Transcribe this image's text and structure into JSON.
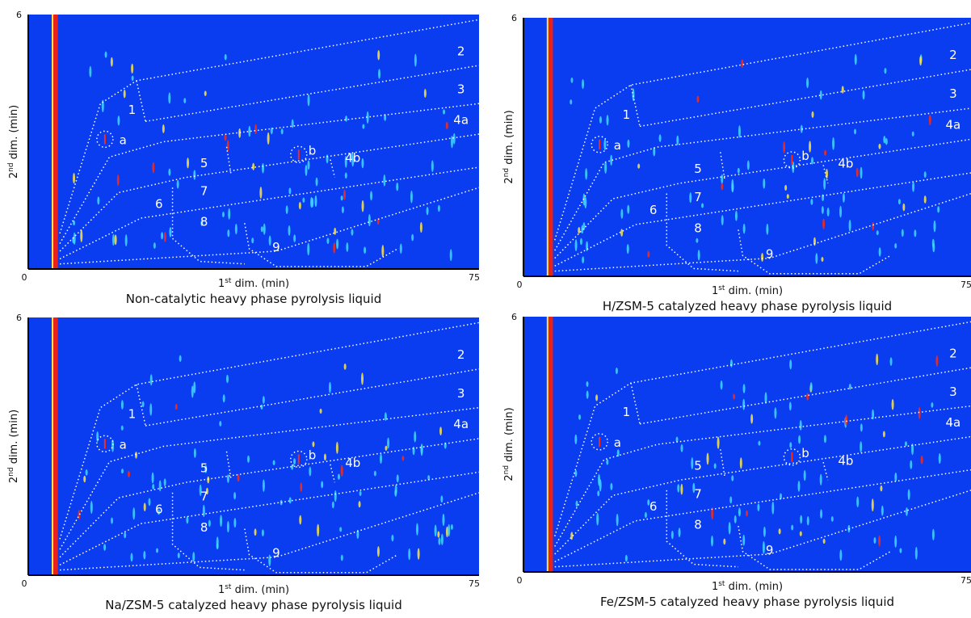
{
  "panels": [
    {
      "caption": "Non-catalytic heavy phase pyrolysis liquid",
      "x_label": {
        "pre": "1",
        "sup": "st",
        "post": " dim. (min)"
      },
      "y_label": {
        "pre": "2",
        "sup": "nd",
        "post": " dim. (min)"
      },
      "x_ticks": [
        "0",
        "75"
      ],
      "y_tick": "6",
      "regions": [
        "1",
        "2",
        "3",
        "4a",
        "4b",
        "5",
        "6",
        "7",
        "8",
        "9",
        "a",
        "b"
      ]
    },
    {
      "caption": "H/ZSM-5  catalyzed heavy phase pyrolysis liquid",
      "x_label": {
        "pre": "1",
        "sup": "st",
        "post": " dim. (min)"
      },
      "y_label": {
        "pre": "2",
        "sup": "nd",
        "post": " dim. (min)"
      },
      "x_ticks": [
        "0",
        "75"
      ],
      "y_tick": "6",
      "regions": [
        "1",
        "2",
        "3",
        "4a",
        "4b",
        "5",
        "6",
        "7",
        "8",
        "9",
        "a",
        "b"
      ]
    },
    {
      "caption": "Na/ZSM-5 catalyzed heavy phase pyrolysis liquid",
      "x_label": {
        "pre": "1",
        "sup": "st",
        "post": " dim. (min)"
      },
      "y_label": {
        "pre": "2",
        "sup": "nd",
        "post": " dim. (min)"
      },
      "x_ticks": [
        "0",
        "75"
      ],
      "y_tick": "6",
      "regions": [
        "1",
        "2",
        "3",
        "4a",
        "4b",
        "5",
        "6",
        "7",
        "8",
        "9",
        "a",
        "b"
      ]
    },
    {
      "caption": "Fe/ZSM-5 catalyzed heavy phase pyrolysis liquid",
      "x_label": {
        "pre": "1",
        "sup": "st",
        "post": " dim. (min)"
      },
      "y_label": {
        "pre": "2",
        "sup": "nd",
        "post": " dim. (min)"
      },
      "x_ticks": [
        "0",
        "75"
      ],
      "y_tick": "6",
      "regions": [
        "1",
        "2",
        "3",
        "4a",
        "4b",
        "5",
        "6",
        "7",
        "8",
        "9",
        "a",
        "b"
      ]
    }
  ]
}
